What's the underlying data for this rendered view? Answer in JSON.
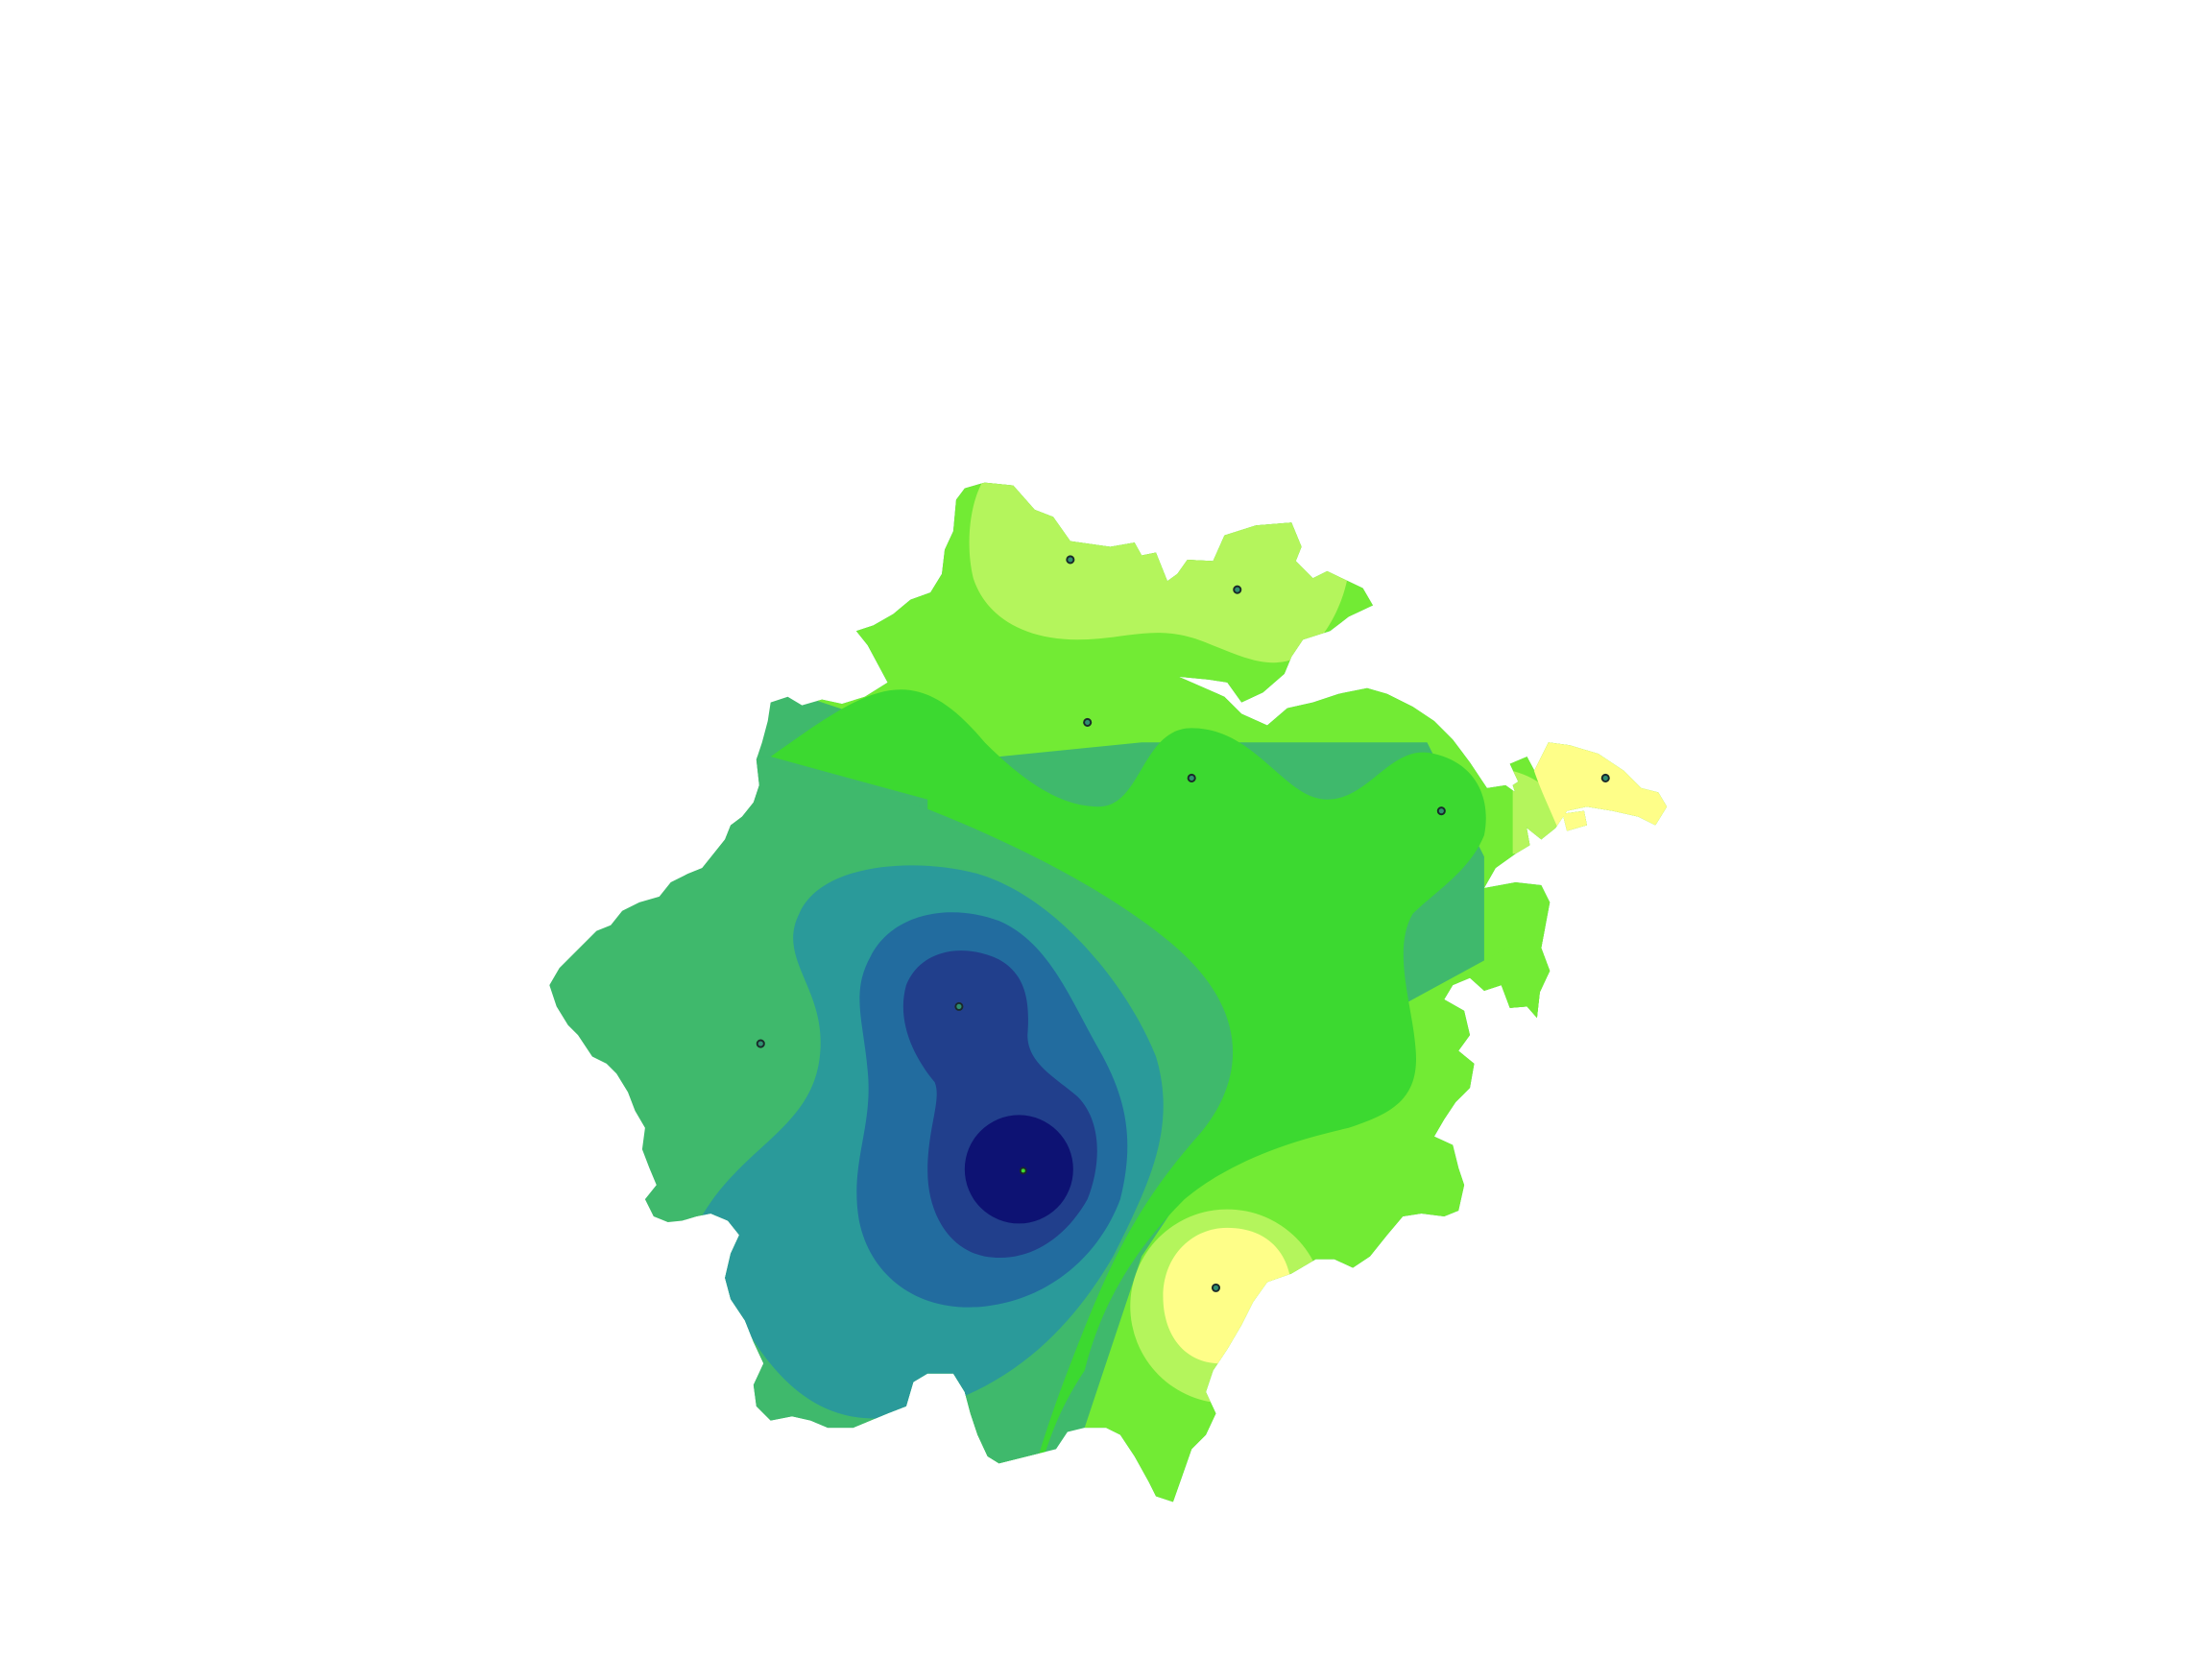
{
  "map": {
    "kind": "filled-contour map of a region with observation stations",
    "background_color": "#ffffff",
    "band_palette_low_to_high": [
      "#0d1273",
      "#213f8c",
      "#226c9f",
      "#2a9a9a",
      "#3fb96c",
      "#3cd930",
      "#72eb34",
      "#b4f55c",
      "#fefe88"
    ],
    "station_marker": {
      "fill": "#2f8f6f",
      "stroke": "#1a2a2a"
    },
    "station_count": 10
  }
}
